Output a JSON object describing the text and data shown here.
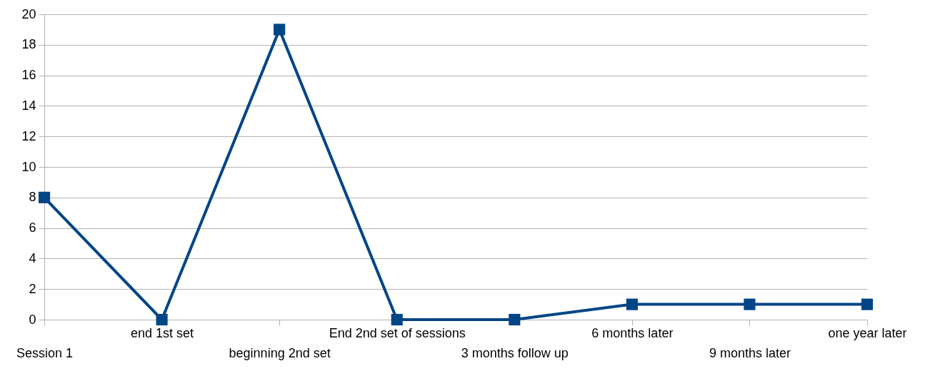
{
  "chart_data": {
    "type": "line",
    "categories": [
      "Session 1",
      "end 1st set",
      "beginning 2nd set",
      "End 2nd set of sessions",
      "3 months follow up",
      "6 months later",
      "9 months later",
      "one year later"
    ],
    "series": [
      {
        "color": "#004586",
        "values": [
          8,
          0,
          19,
          0,
          0,
          1,
          1,
          1
        ]
      }
    ],
    "ylim": [
      0,
      20
    ],
    "yticks": [
      0,
      2,
      4,
      6,
      8,
      10,
      12,
      14,
      16,
      18,
      20
    ],
    "grid": "y",
    "marker": "square",
    "line_style": "solid"
  }
}
